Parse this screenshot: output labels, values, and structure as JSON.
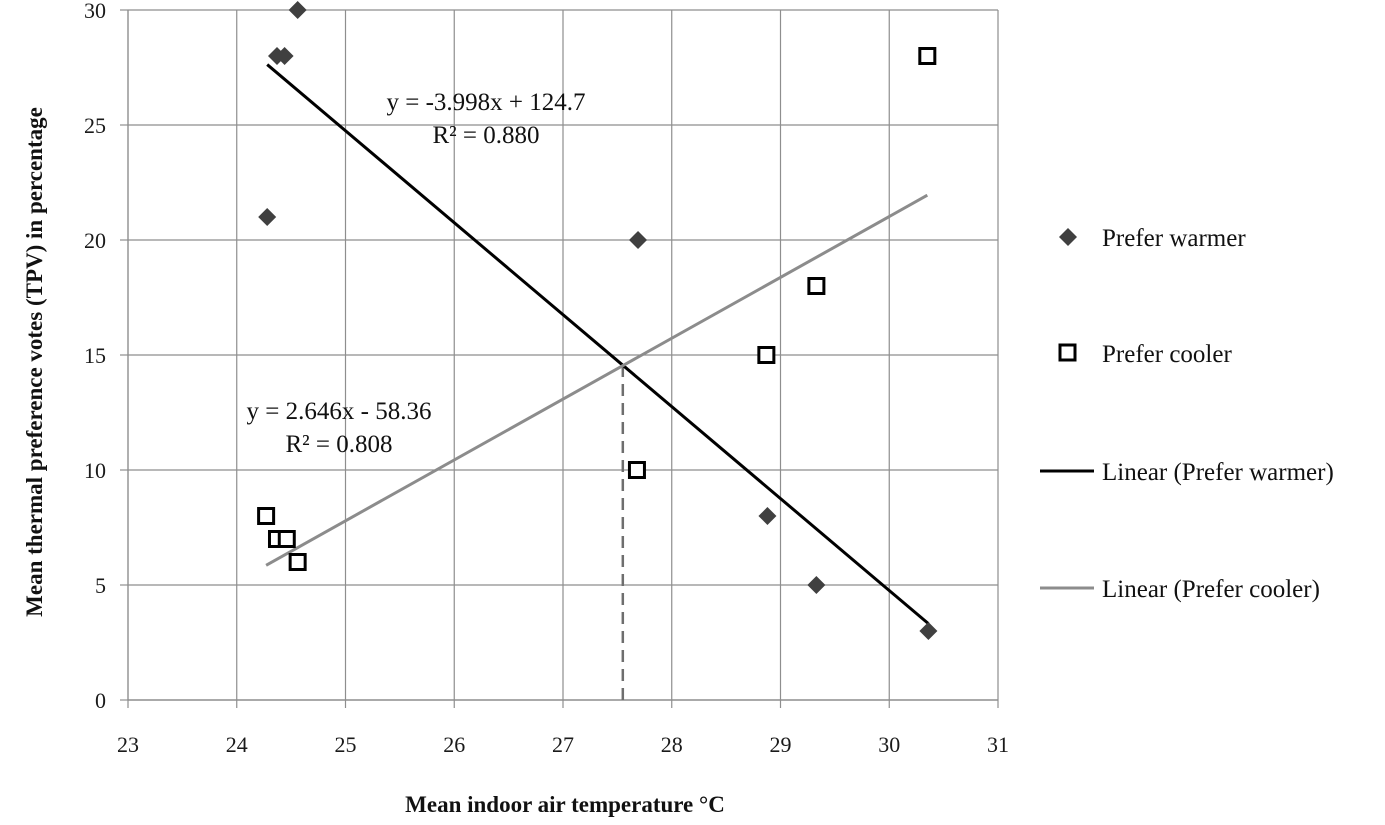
{
  "chart_data": {
    "type": "scatter",
    "xlabel": "Mean indoor air temperature °C",
    "ylabel": "Mean thermal preference votes (TPV) in percentage",
    "xlim": [
      23,
      31
    ],
    "ylim": [
      0,
      30
    ],
    "x_ticks": [
      "23",
      "24",
      "25",
      "26",
      "27",
      "28",
      "29",
      "30",
      "31"
    ],
    "y_ticks": [
      "0",
      "5",
      "10",
      "15",
      "20",
      "25",
      "30"
    ],
    "grid": true,
    "legend_position": "right",
    "series": [
      {
        "name": "Prefer warmer",
        "marker": "diamond",
        "color": "#404040",
        "points": [
          {
            "x": 24.28,
            "y": 21
          },
          {
            "x": 24.37,
            "y": 28
          },
          {
            "x": 24.44,
            "y": 28
          },
          {
            "x": 24.56,
            "y": 30
          },
          {
            "x": 27.69,
            "y": 20
          },
          {
            "x": 28.88,
            "y": 8
          },
          {
            "x": 29.33,
            "y": 5
          },
          {
            "x": 30.36,
            "y": 3
          }
        ]
      },
      {
        "name": "Prefer cooler",
        "marker": "square",
        "color": "#000000",
        "points": [
          {
            "x": 24.27,
            "y": 8
          },
          {
            "x": 24.37,
            "y": 7
          },
          {
            "x": 24.46,
            "y": 7
          },
          {
            "x": 24.56,
            "y": 6
          },
          {
            "x": 27.68,
            "y": 10
          },
          {
            "x": 28.87,
            "y": 15
          },
          {
            "x": 29.33,
            "y": 18
          },
          {
            "x": 30.35,
            "y": 28
          }
        ]
      }
    ],
    "trendlines": [
      {
        "name": "Linear (Prefer warmer)",
        "color": "#000000",
        "slope": -3.998,
        "intercept": 124.7,
        "x_range": [
          24.28,
          30.36
        ],
        "equation": "y = -3.998x + 124.7",
        "r2": "R² = 0.880"
      },
      {
        "name": "Linear (Prefer cooler)",
        "color": "#8c8c8c",
        "slope": 2.646,
        "intercept": -58.36,
        "x_range": [
          24.27,
          30.35
        ],
        "equation": "y = 2.646x - 58.36",
        "r2": "R² = 0.808"
      }
    ],
    "reference_line": {
      "x": 27.55,
      "style": "dashed",
      "from_y": 0,
      "to_y": 14.55
    }
  }
}
